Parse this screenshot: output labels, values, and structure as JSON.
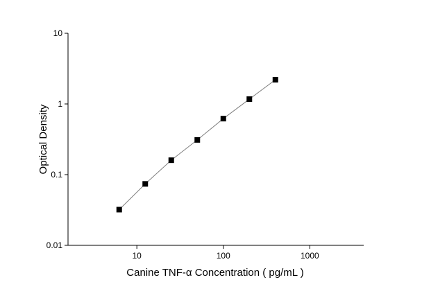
{
  "chart_data": {
    "type": "scatter",
    "x_label": "Canine TNF-α Concentration ( pg/mL )",
    "y_label": "Optical Density",
    "x": [
      6.25,
      12.5,
      25,
      50,
      100,
      200,
      400
    ],
    "series": [
      {
        "color": "#000000",
        "values": [
          0.032,
          0.074,
          0.16,
          0.31,
          0.62,
          1.17,
          2.2
        ]
      }
    ],
    "xlog": true,
    "ylog": true,
    "xlim": [
      1.6,
      4200
    ],
    "ylim": [
      0.01,
      10
    ],
    "xticks": [
      10,
      100,
      1000
    ],
    "yticks": [
      0.01,
      0.1,
      1,
      10
    ],
    "connect_points": true,
    "line_color": "#808080"
  }
}
